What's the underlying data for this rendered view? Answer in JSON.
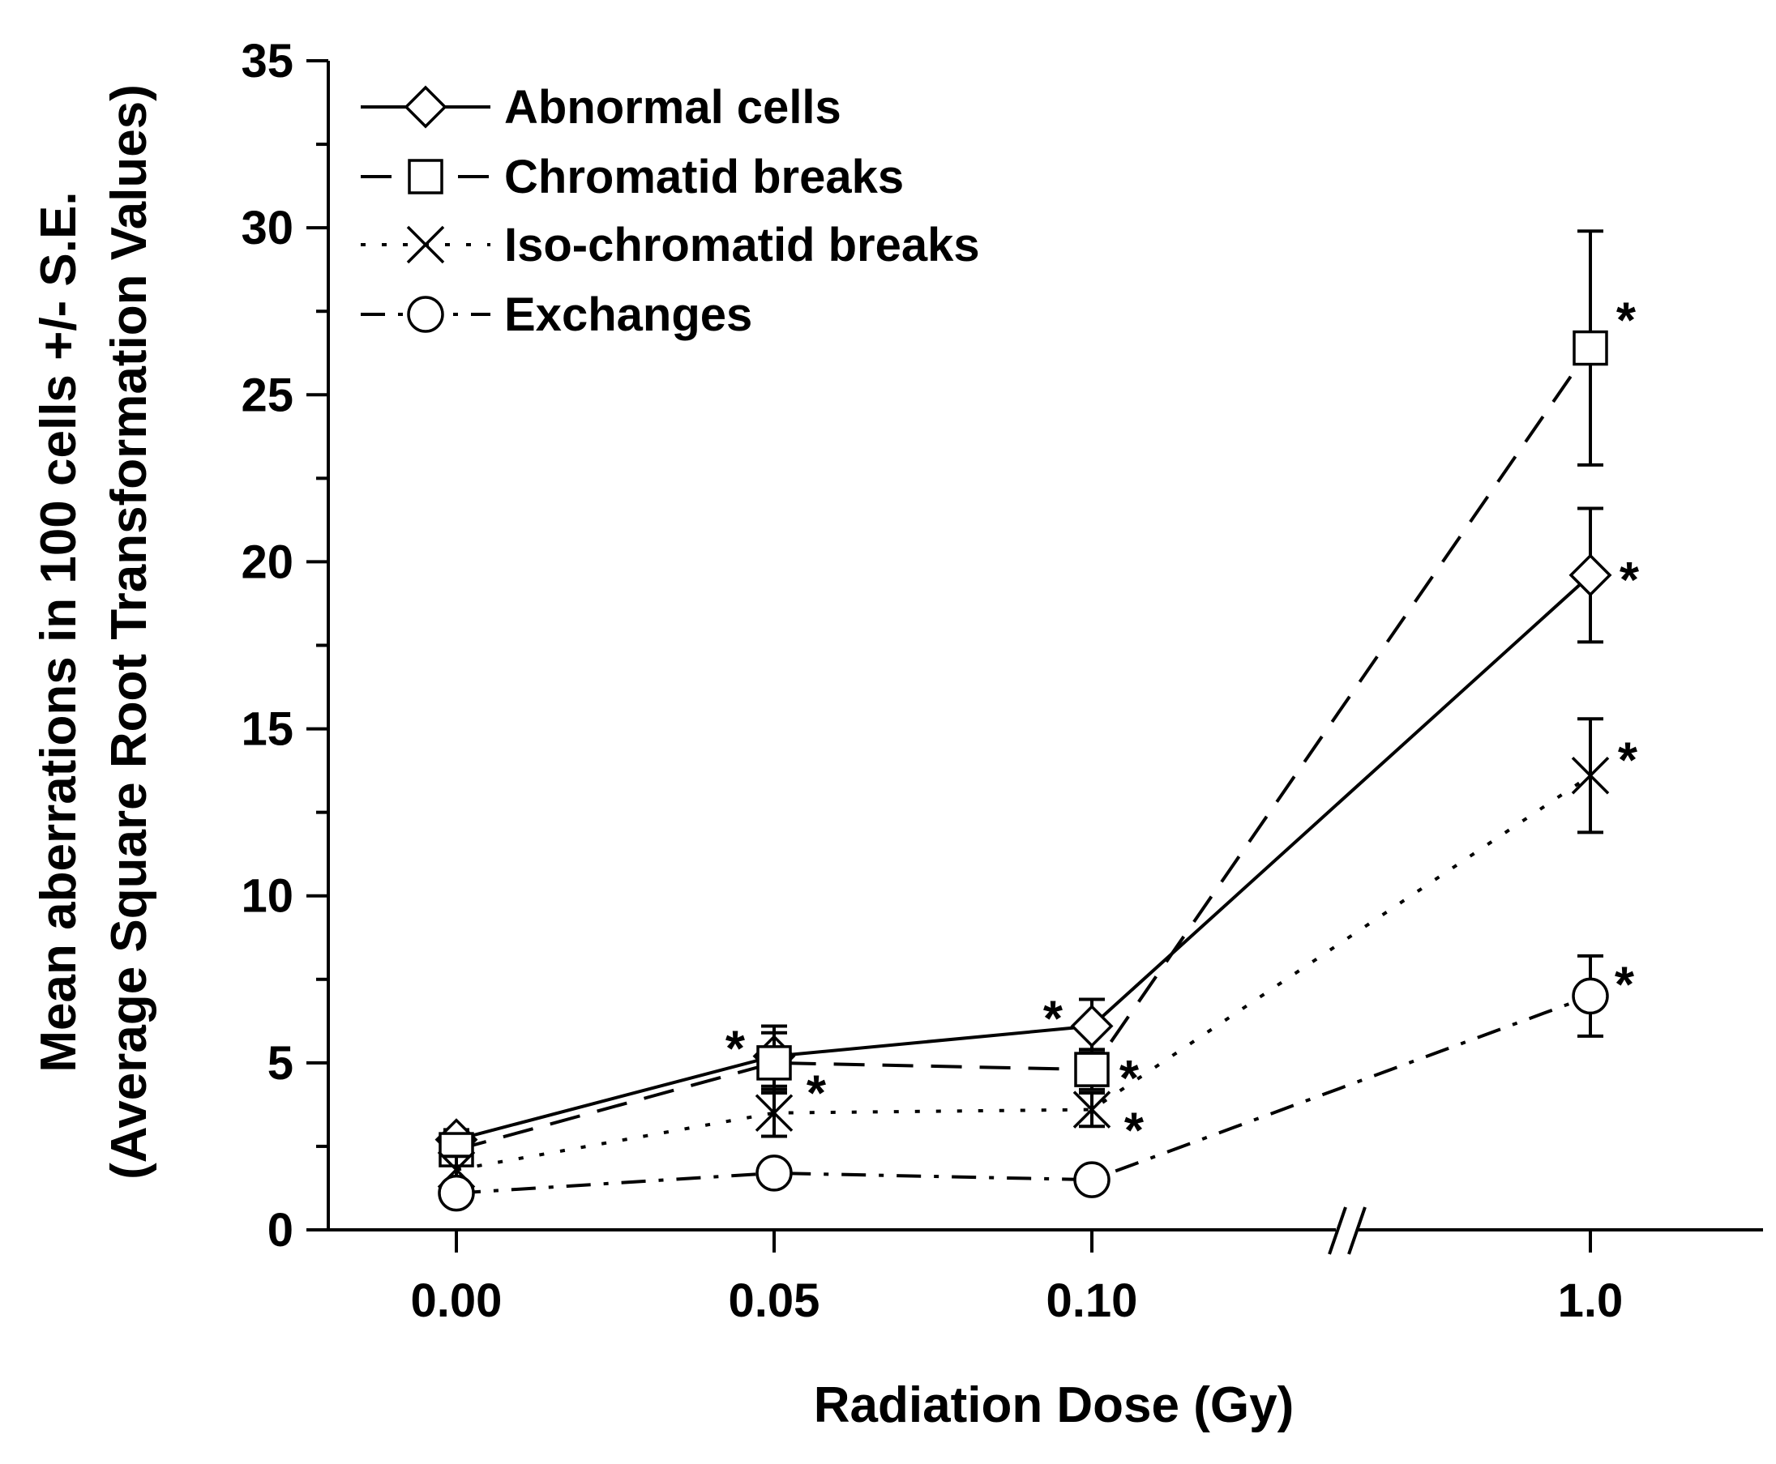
{
  "chart_data": {
    "type": "line",
    "title": "",
    "xlabel": "Radiation Dose (Gy)",
    "ylabel_line1": "Mean aberrations in 100 cells +/- S.E.",
    "ylabel_line2": "(Average Square Root Transformation Values)",
    "categories": [
      "0.00",
      "0.05",
      "0.10",
      "1.0"
    ],
    "x_axis_break": "between 0.10 and 1.0",
    "ylim": [
      0,
      35
    ],
    "yticks": [
      "0",
      "5",
      "10",
      "15",
      "20",
      "25",
      "30",
      "35"
    ],
    "grid": false,
    "legend_position": "top-left",
    "significance_marker": "*",
    "series": [
      {
        "name": "Abnormal cells",
        "marker": "diamond",
        "line_style": "solid",
        "values": [
          2.7,
          5.2,
          6.1,
          19.6
        ],
        "errors": [
          0.3,
          0.9,
          0.8,
          2.0
        ],
        "significant": [
          false,
          true,
          true,
          true
        ]
      },
      {
        "name": "Chromatid breaks",
        "marker": "square",
        "line_style": "dashed",
        "values": [
          2.4,
          5.0,
          4.8,
          26.4
        ],
        "errors": [
          0.4,
          0.9,
          0.6,
          3.5
        ],
        "significant": [
          false,
          false,
          true,
          true
        ]
      },
      {
        "name": "Iso-chromatid breaks",
        "marker": "x",
        "line_style": "dotted",
        "values": [
          1.8,
          3.5,
          3.6,
          13.6
        ],
        "errors": [
          0.4,
          0.7,
          0.5,
          1.7
        ],
        "significant": [
          false,
          true,
          true,
          true
        ]
      },
      {
        "name": "Exchanges",
        "marker": "circle",
        "line_style": "dash-dot",
        "values": [
          1.1,
          1.7,
          1.5,
          7.0
        ],
        "errors": [
          0.2,
          0.3,
          0.2,
          1.2
        ],
        "significant": [
          false,
          false,
          false,
          true
        ]
      }
    ]
  }
}
